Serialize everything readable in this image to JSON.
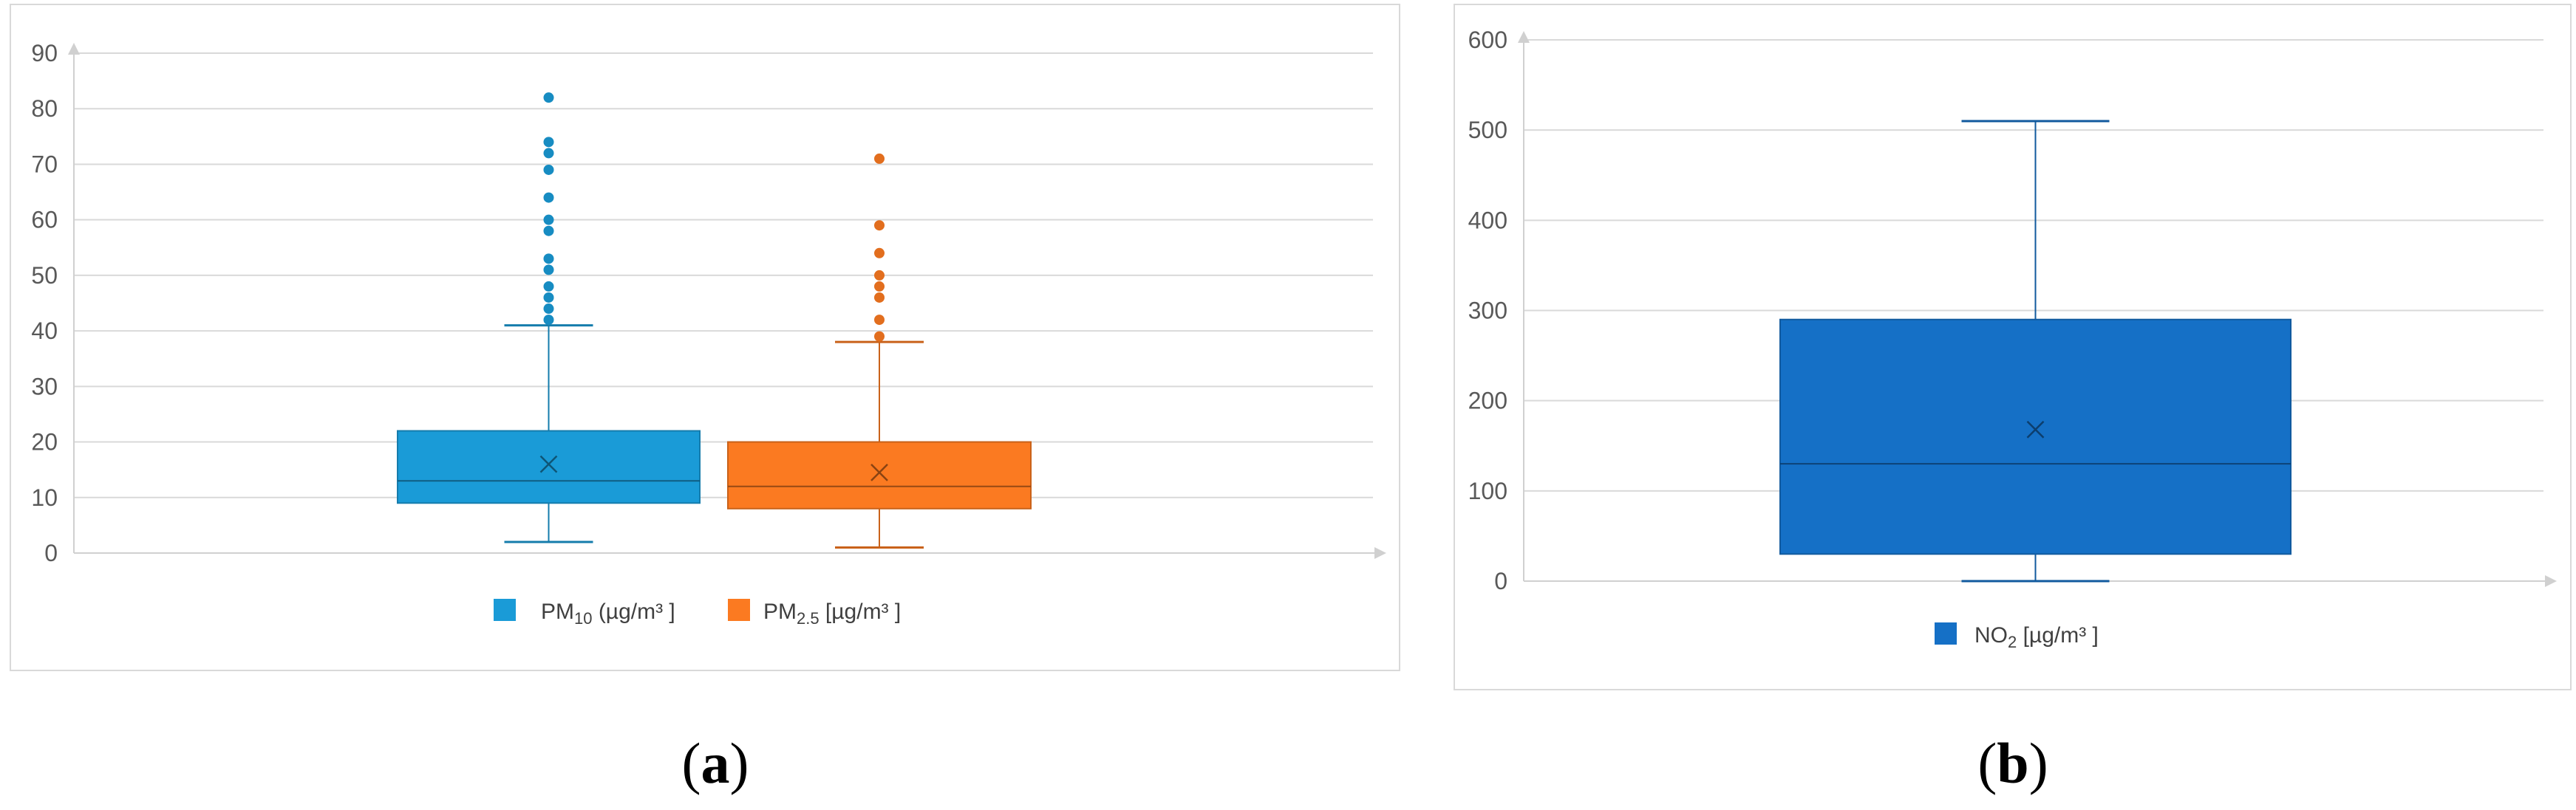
{
  "chart_data": [
    {
      "type": "boxplot",
      "panel_label": "(a)",
      "ylim": [
        0,
        90
      ],
      "ytick_step": 10,
      "grid": true,
      "legend_position": "bottom",
      "series": [
        {
          "name": "PM10 [µg/m³]",
          "name_main": "PM",
          "name_sub": "10",
          "name_unit": " (µg/m³ ]",
          "color": "#1a9bd7",
          "whisker_low": 2,
          "q1": 9,
          "median": 13,
          "mean": 16,
          "q3": 22,
          "whisker_high": 41,
          "outliers": [
            42,
            44,
            46,
            48,
            51,
            53,
            58,
            60,
            64,
            69,
            72,
            74,
            82
          ]
        },
        {
          "name": "PM2.5 [µg/m³]",
          "name_main": "PM",
          "name_sub": "2.5",
          "name_unit": " [µg/m³ ]",
          "color": "#fb7a21",
          "whisker_low": 1,
          "q1": 8,
          "median": 12,
          "mean": 14.5,
          "q3": 20,
          "whisker_high": 38,
          "outliers": [
            39,
            42,
            46,
            48,
            50,
            54,
            59,
            71
          ]
        }
      ]
    },
    {
      "type": "boxplot",
      "panel_label": "(b)",
      "ylim": [
        0,
        600
      ],
      "ytick_step": 100,
      "grid": true,
      "legend_position": "bottom",
      "series": [
        {
          "name": "NO2 [µg/m³]",
          "name_main": "NO",
          "name_sub": "2",
          "name_unit": " [µg/m³ ]",
          "color": "#1570c6",
          "whisker_low": 0,
          "q1": 30,
          "median": 130,
          "mean": 168,
          "q3": 290,
          "whisker_high": 510,
          "outliers": []
        }
      ]
    }
  ]
}
